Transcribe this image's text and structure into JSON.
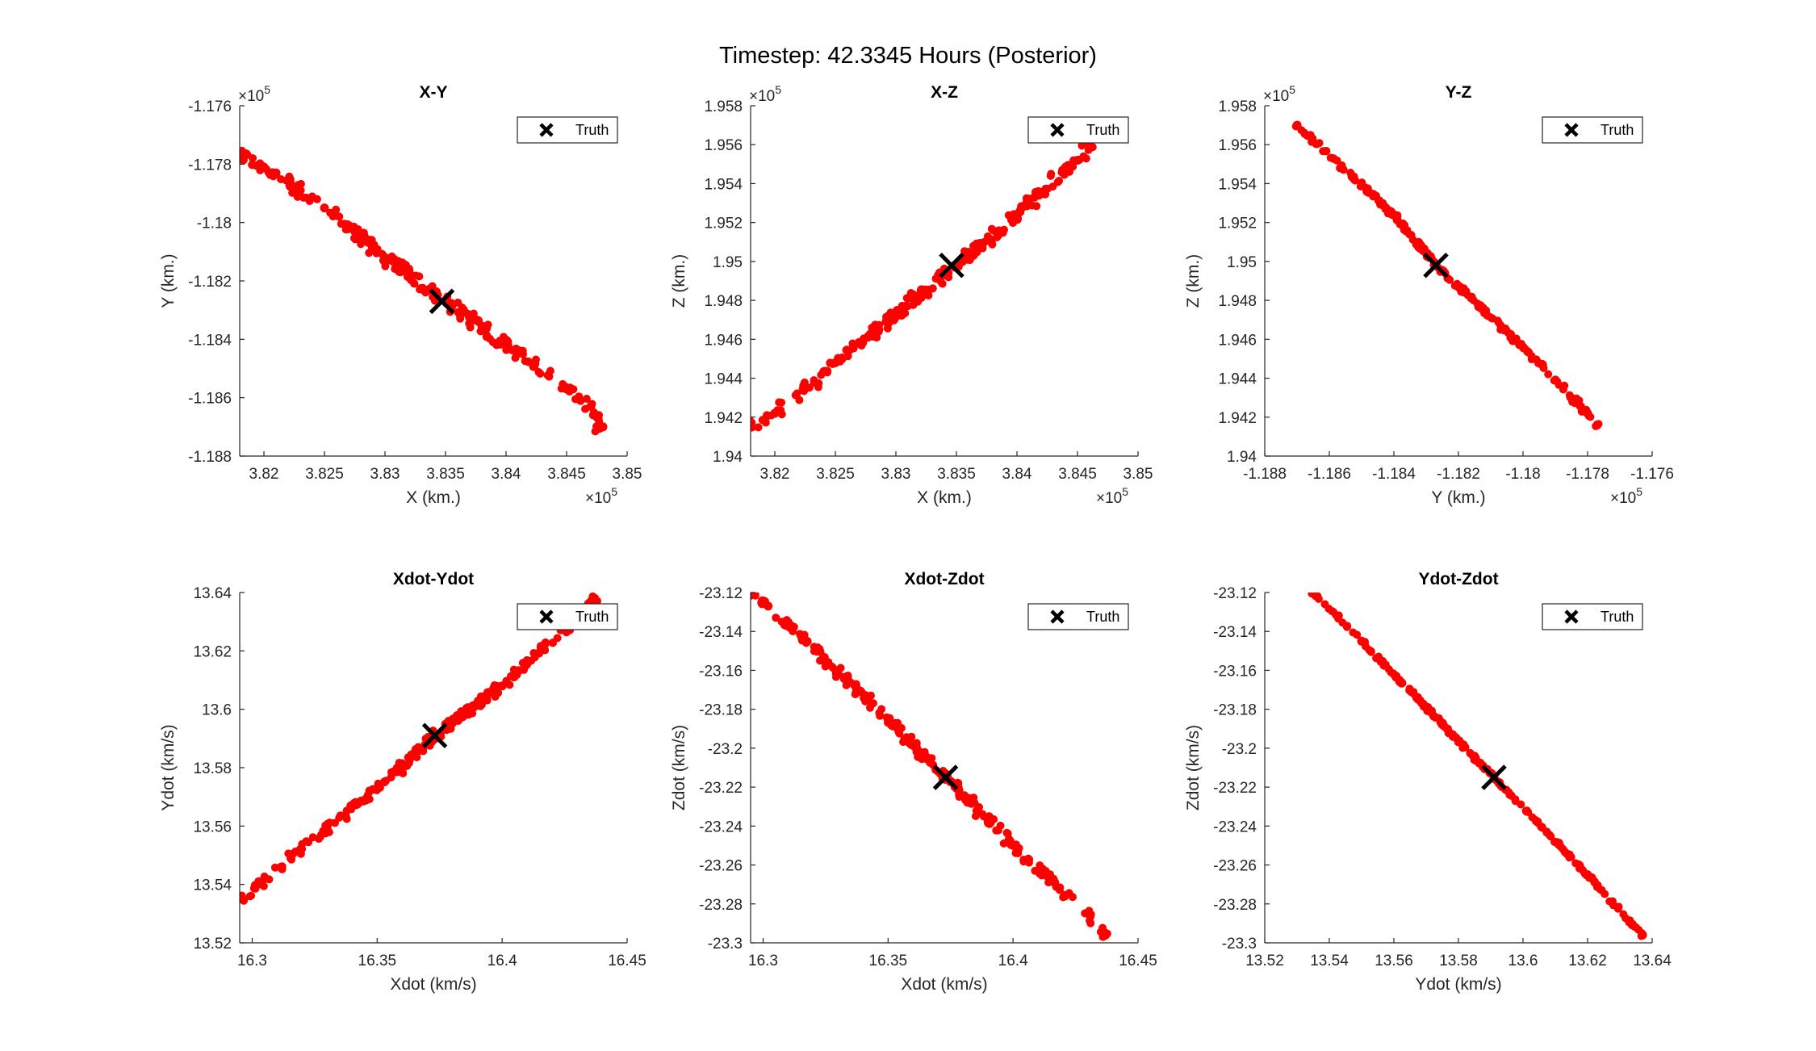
{
  "figure": {
    "title": "Timestep: 42.3345 Hours (Posterior)"
  },
  "colors": {
    "samples": "#ff0000",
    "truth": "#000000",
    "axes": "#262626"
  },
  "chart_data": [
    {
      "type": "scatter",
      "title": "X-Y",
      "xlabel": "X (km.)",
      "ylabel": "Y (km.)",
      "xlim": [
        381800,
        385000
      ],
      "ylim": [
        -118800,
        -117600
      ],
      "xticks": [
        382000,
        382500,
        383000,
        383500,
        384000,
        384500,
        385000
      ],
      "xticklabels": [
        "3.82",
        "3.825",
        "3.83",
        "3.835",
        "3.84",
        "3.845",
        "3.85"
      ],
      "yticks": [
        -118800,
        -118600,
        -118400,
        -118200,
        -118000,
        -117800,
        -117600
      ],
      "yticklabels": [
        "-1.188",
        "-1.186",
        "-1.184",
        "-1.182",
        "-1.18",
        "-1.178",
        "-1.176"
      ],
      "x_exponent": "5",
      "y_exponent": "5",
      "legend": "top-right",
      "grid": false,
      "series": [
        {
          "marker": "dot",
          "color": "#ff0000",
          "x0": 381800,
          "y0": -117770,
          "x1": 384800,
          "y1": -118700,
          "count": 240,
          "spread": 8,
          "points": [
            [
              381800,
              -117770
            ],
            [
              382000,
              -117810
            ],
            [
              382100,
              -117830
            ],
            [
              382300,
              -117890
            ],
            [
              382500,
              -117950
            ],
            [
              383000,
              -118120
            ],
            [
              383500,
              -118270
            ],
            [
              384000,
              -118420
            ],
            [
              384500,
              -118570
            ],
            [
              384700,
              -118630
            ],
            [
              384800,
              -118700
            ]
          ]
        },
        {
          "name": "Truth",
          "marker": "x",
          "color": "#000000",
          "points": [
            [
              383470,
              -118270
            ]
          ]
        }
      ]
    },
    {
      "type": "scatter",
      "title": "X-Z",
      "xlabel": "X (km.)",
      "ylabel": "Z (km.)",
      "xlim": [
        381800,
        385000
      ],
      "ylim": [
        194000,
        195800
      ],
      "xticks": [
        382000,
        382500,
        383000,
        383500,
        384000,
        384500,
        385000
      ],
      "xticklabels": [
        "3.82",
        "3.825",
        "3.83",
        "3.835",
        "3.84",
        "3.845",
        "3.85"
      ],
      "yticks": [
        194000,
        194200,
        194400,
        194600,
        194800,
        195000,
        195200,
        195400,
        195600,
        195800
      ],
      "yticklabels": [
        "1.94",
        "1.942",
        "1.944",
        "1.946",
        "1.948",
        "1.95",
        "1.952",
        "1.954",
        "1.956",
        "1.958"
      ],
      "x_exponent": "5",
      "y_exponent": "5",
      "legend": "top-right",
      "grid": false,
      "series": [
        {
          "marker": "dot",
          "color": "#ff0000",
          "x0": 381800,
          "y0": 194160,
          "x1": 384600,
          "y1": 195600,
          "count": 260,
          "spread": 7,
          "points": [
            [
              381800,
              194160
            ],
            [
              382000,
              194220
            ],
            [
              382500,
              194480
            ],
            [
              383000,
              194730
            ],
            [
              383500,
              194980
            ],
            [
              384000,
              195240
            ],
            [
              384500,
              195520
            ],
            [
              384600,
              195600
            ]
          ]
        },
        {
          "name": "Truth",
          "marker": "x",
          "color": "#000000",
          "points": [
            [
              383460,
              194980
            ]
          ]
        }
      ]
    },
    {
      "type": "scatter",
      "title": "Y-Z",
      "xlabel": "Y (km.)",
      "ylabel": "Z (km.)",
      "xlim": [
        -118800,
        -117600
      ],
      "ylim": [
        194000,
        195800
      ],
      "xticks": [
        -118800,
        -118600,
        -118400,
        -118200,
        -118000,
        -117800,
        -117600
      ],
      "xticklabels": [
        "-1.188",
        "-1.186",
        "-1.184",
        "-1.182",
        "-1.18",
        "-1.178",
        "-1.176"
      ],
      "yticks": [
        194000,
        194200,
        194400,
        194600,
        194800,
        195000,
        195200,
        195400,
        195600,
        195800
      ],
      "yticklabels": [
        "1.94",
        "1.942",
        "1.944",
        "1.946",
        "1.948",
        "1.95",
        "1.952",
        "1.954",
        "1.956",
        "1.958"
      ],
      "x_exponent": "5",
      "y_exponent": "5",
      "legend": "top-right",
      "grid": false,
      "series": [
        {
          "marker": "dot",
          "color": "#ff0000",
          "x0": -118700,
          "y0": 195700,
          "x1": -117770,
          "y1": 194160,
          "count": 230,
          "spread": 3,
          "points": [
            [
              -118700,
              195700
            ],
            [
              -118400,
              195240
            ],
            [
              -118270,
              194980
            ],
            [
              -118000,
              194560
            ],
            [
              -117800,
              194220
            ],
            [
              -117770,
              194160
            ]
          ]
        },
        {
          "name": "Truth",
          "marker": "x",
          "color": "#000000",
          "points": [
            [
              -118270,
              194980
            ]
          ]
        }
      ]
    },
    {
      "type": "scatter",
      "title": "Xdot-Ydot",
      "xlabel": "Xdot (km/s)",
      "ylabel": "Ydot (km/s)",
      "xlim": [
        16.295,
        16.45
      ],
      "ylim": [
        13.52,
        13.64
      ],
      "xticks": [
        16.3,
        16.35,
        16.4,
        16.45
      ],
      "xticklabels": [
        "16.3",
        "16.35",
        "16.4",
        "16.45"
      ],
      "yticks": [
        13.52,
        13.54,
        13.56,
        13.58,
        13.6,
        13.62,
        13.64
      ],
      "yticklabels": [
        "13.52",
        "13.54",
        "13.56",
        "13.58",
        "13.6",
        "13.62",
        "13.64"
      ],
      "legend": "top-right",
      "grid": false,
      "series": [
        {
          "marker": "dot",
          "color": "#ff0000",
          "x0": 16.296,
          "y0": 13.535,
          "x1": 16.437,
          "y1": 13.638,
          "count": 260,
          "spread": 6,
          "points": [
            [
              16.296,
              13.535
            ],
            [
              16.302,
              13.54
            ],
            [
              16.35,
              13.573
            ],
            [
              16.373,
              13.591
            ],
            [
              16.4,
              13.608
            ],
            [
              16.43,
              13.632
            ],
            [
              16.437,
              13.638
            ]
          ]
        },
        {
          "name": "Truth",
          "marker": "x",
          "color": "#000000",
          "points": [
            [
              16.373,
              13.591
            ]
          ]
        }
      ]
    },
    {
      "type": "scatter",
      "title": "Xdot-Zdot",
      "xlabel": "Xdot (km/s)",
      "ylabel": "Zdot (km/s)",
      "xlim": [
        16.295,
        16.45
      ],
      "ylim": [
        -23.3,
        -23.12
      ],
      "xticks": [
        16.3,
        16.35,
        16.4,
        16.45
      ],
      "xticklabels": [
        "16.3",
        "16.35",
        "16.4",
        "16.45"
      ],
      "yticks": [
        -23.3,
        -23.28,
        -23.26,
        -23.24,
        -23.22,
        -23.2,
        -23.18,
        -23.16,
        -23.14,
        -23.12
      ],
      "yticklabels": [
        "-23.3",
        "-23.28",
        "-23.26",
        "-23.24",
        "-23.22",
        "-23.2",
        "-23.18",
        "-23.16",
        "-23.14",
        "-23.12"
      ],
      "legend": "top-right",
      "grid": false,
      "series": [
        {
          "marker": "dot",
          "color": "#ff0000",
          "x0": 16.296,
          "y0": -23.12,
          "x1": 16.437,
          "y1": -23.296,
          "count": 260,
          "spread": 6,
          "points": [
            [
              16.296,
              -23.12
            ],
            [
              16.302,
              -23.127
            ],
            [
              16.35,
              -23.185
            ],
            [
              16.373,
              -23.215
            ],
            [
              16.4,
              -23.25
            ],
            [
              16.43,
              -23.285
            ],
            [
              16.437,
              -23.296
            ]
          ]
        },
        {
          "name": "Truth",
          "marker": "x",
          "color": "#000000",
          "points": [
            [
              16.373,
              -23.215
            ]
          ]
        }
      ]
    },
    {
      "type": "scatter",
      "title": "Ydot-Zdot",
      "xlabel": "Ydot (km/s)",
      "ylabel": "Zdot (km/s)",
      "xlim": [
        13.52,
        13.64
      ],
      "ylim": [
        -23.3,
        -23.12
      ],
      "xticks": [
        13.52,
        13.54,
        13.56,
        13.58,
        13.6,
        13.62,
        13.64
      ],
      "xticklabels": [
        "13.52",
        "13.54",
        "13.56",
        "13.58",
        "13.6",
        "13.62",
        "13.64"
      ],
      "yticks": [
        -23.3,
        -23.28,
        -23.26,
        -23.24,
        -23.22,
        -23.2,
        -23.18,
        -23.16,
        -23.14,
        -23.12
      ],
      "yticklabels": [
        "-23.3",
        "-23.28",
        "-23.26",
        "-23.24",
        "-23.22",
        "-23.2",
        "-23.18",
        "-23.16",
        "-23.14",
        "-23.12"
      ],
      "legend": "top-right",
      "grid": false,
      "series": [
        {
          "marker": "dot",
          "color": "#ff0000",
          "x0": 13.535,
          "y0": -23.12,
          "x1": 13.637,
          "y1": -23.296,
          "count": 230,
          "spread": 2,
          "points": [
            [
              13.535,
              -23.12
            ],
            [
              13.55,
              -23.145
            ],
            [
              13.591,
              -23.215
            ],
            [
              13.62,
              -23.265
            ],
            [
              13.637,
              -23.296
            ]
          ]
        },
        {
          "name": "Truth",
          "marker": "x",
          "color": "#000000",
          "points": [
            [
              13.591,
              -23.215
            ]
          ]
        }
      ]
    }
  ]
}
